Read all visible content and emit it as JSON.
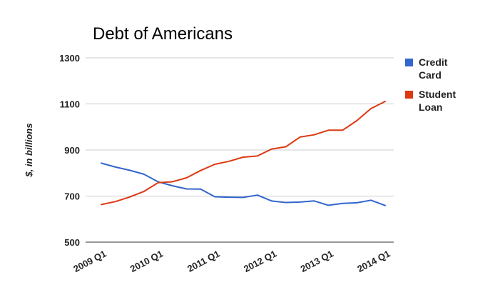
{
  "chart_data": {
    "type": "line",
    "title": "Debt of Americans",
    "xlabel": "",
    "ylabel": "$, in billions",
    "ylim": [
      500,
      1300
    ],
    "yticks": [
      500,
      700,
      900,
      1100,
      1300
    ],
    "grid": true,
    "legend_position": "right",
    "x": [
      "2009 Q1",
      "2009 Q2",
      "2009 Q3",
      "2009 Q4",
      "2010 Q1",
      "2010 Q2",
      "2010 Q3",
      "2010 Q4",
      "2011 Q1",
      "2011 Q2",
      "2011 Q3",
      "2011 Q4",
      "2012 Q1",
      "2012 Q2",
      "2012 Q3",
      "2012 Q4",
      "2013 Q1",
      "2013 Q2",
      "2013 Q3",
      "2013 Q4",
      "2014 Q1"
    ],
    "xtick_labels": [
      "2009 Q1",
      "2010 Q1",
      "2011 Q1",
      "2012 Q1",
      "2013 Q1",
      "2014 Q1"
    ],
    "series": [
      {
        "name": "Credit Card",
        "legend_lines": [
          "Credit",
          "Card"
        ],
        "color": "#3366cc",
        "values": [
          843,
          826,
          812,
          795,
          762,
          745,
          731,
          730,
          697,
          695,
          694,
          704,
          679,
          672,
          674,
          679,
          660,
          668,
          671,
          682,
          659
        ]
      },
      {
        "name": "Student Loan",
        "legend_lines": [
          "Student",
          "Loan"
        ],
        "color": "#dc3912",
        "values": [
          663,
          676,
          696,
          720,
          758,
          762,
          779,
          811,
          838,
          851,
          869,
          874,
          904,
          914,
          956,
          966,
          986,
          986,
          1027,
          1080,
          1111
        ]
      }
    ]
  }
}
